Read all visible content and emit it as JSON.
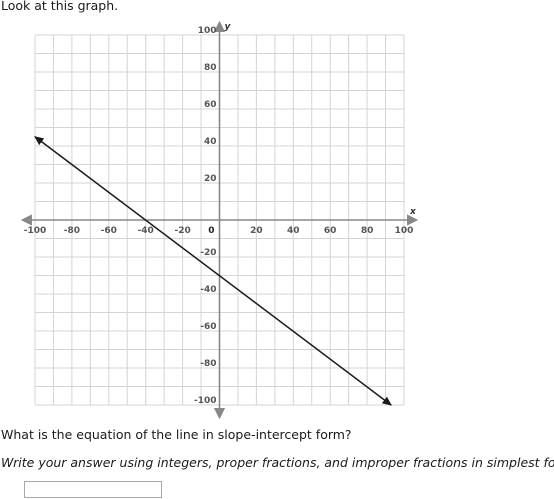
{
  "intro": "Look at this graph.",
  "question": "What is the equation of the line in slope-intercept form?",
  "instructions": "Write your answer using integers, proper fractions, and improper fractions in simplest form.",
  "answer": {
    "value": "",
    "placeholder": ""
  },
  "chart_data": {
    "type": "line",
    "xlim": [
      -100,
      100
    ],
    "ylim": [
      -100,
      100
    ],
    "xlabel": "x",
    "ylabel": "y",
    "x_ticks": [
      -100,
      -80,
      -60,
      -40,
      -20,
      0,
      20,
      40,
      60,
      80,
      100
    ],
    "x_tick_labels": [
      "-100",
      "-80",
      "-60",
      "-40",
      "-20",
      "0",
      "20",
      "40",
      "60",
      "80",
      "100"
    ],
    "y_ticks": [
      100,
      80,
      60,
      40,
      20,
      -20,
      -40,
      -60,
      -80,
      -100
    ],
    "y_tick_labels": [
      "100",
      "80",
      "60",
      "40",
      "20",
      "-20",
      "-40",
      "-60",
      "-80",
      "-100"
    ],
    "grid": true,
    "grid_minor_step": 10,
    "series": [
      {
        "x": [
          -100,
          93
        ],
        "y": [
          45,
          -100
        ],
        "arrows": "both",
        "color": "#1a1a1a"
      }
    ],
    "axis_color": "#888888",
    "grid_color": "#d4d4d4"
  }
}
